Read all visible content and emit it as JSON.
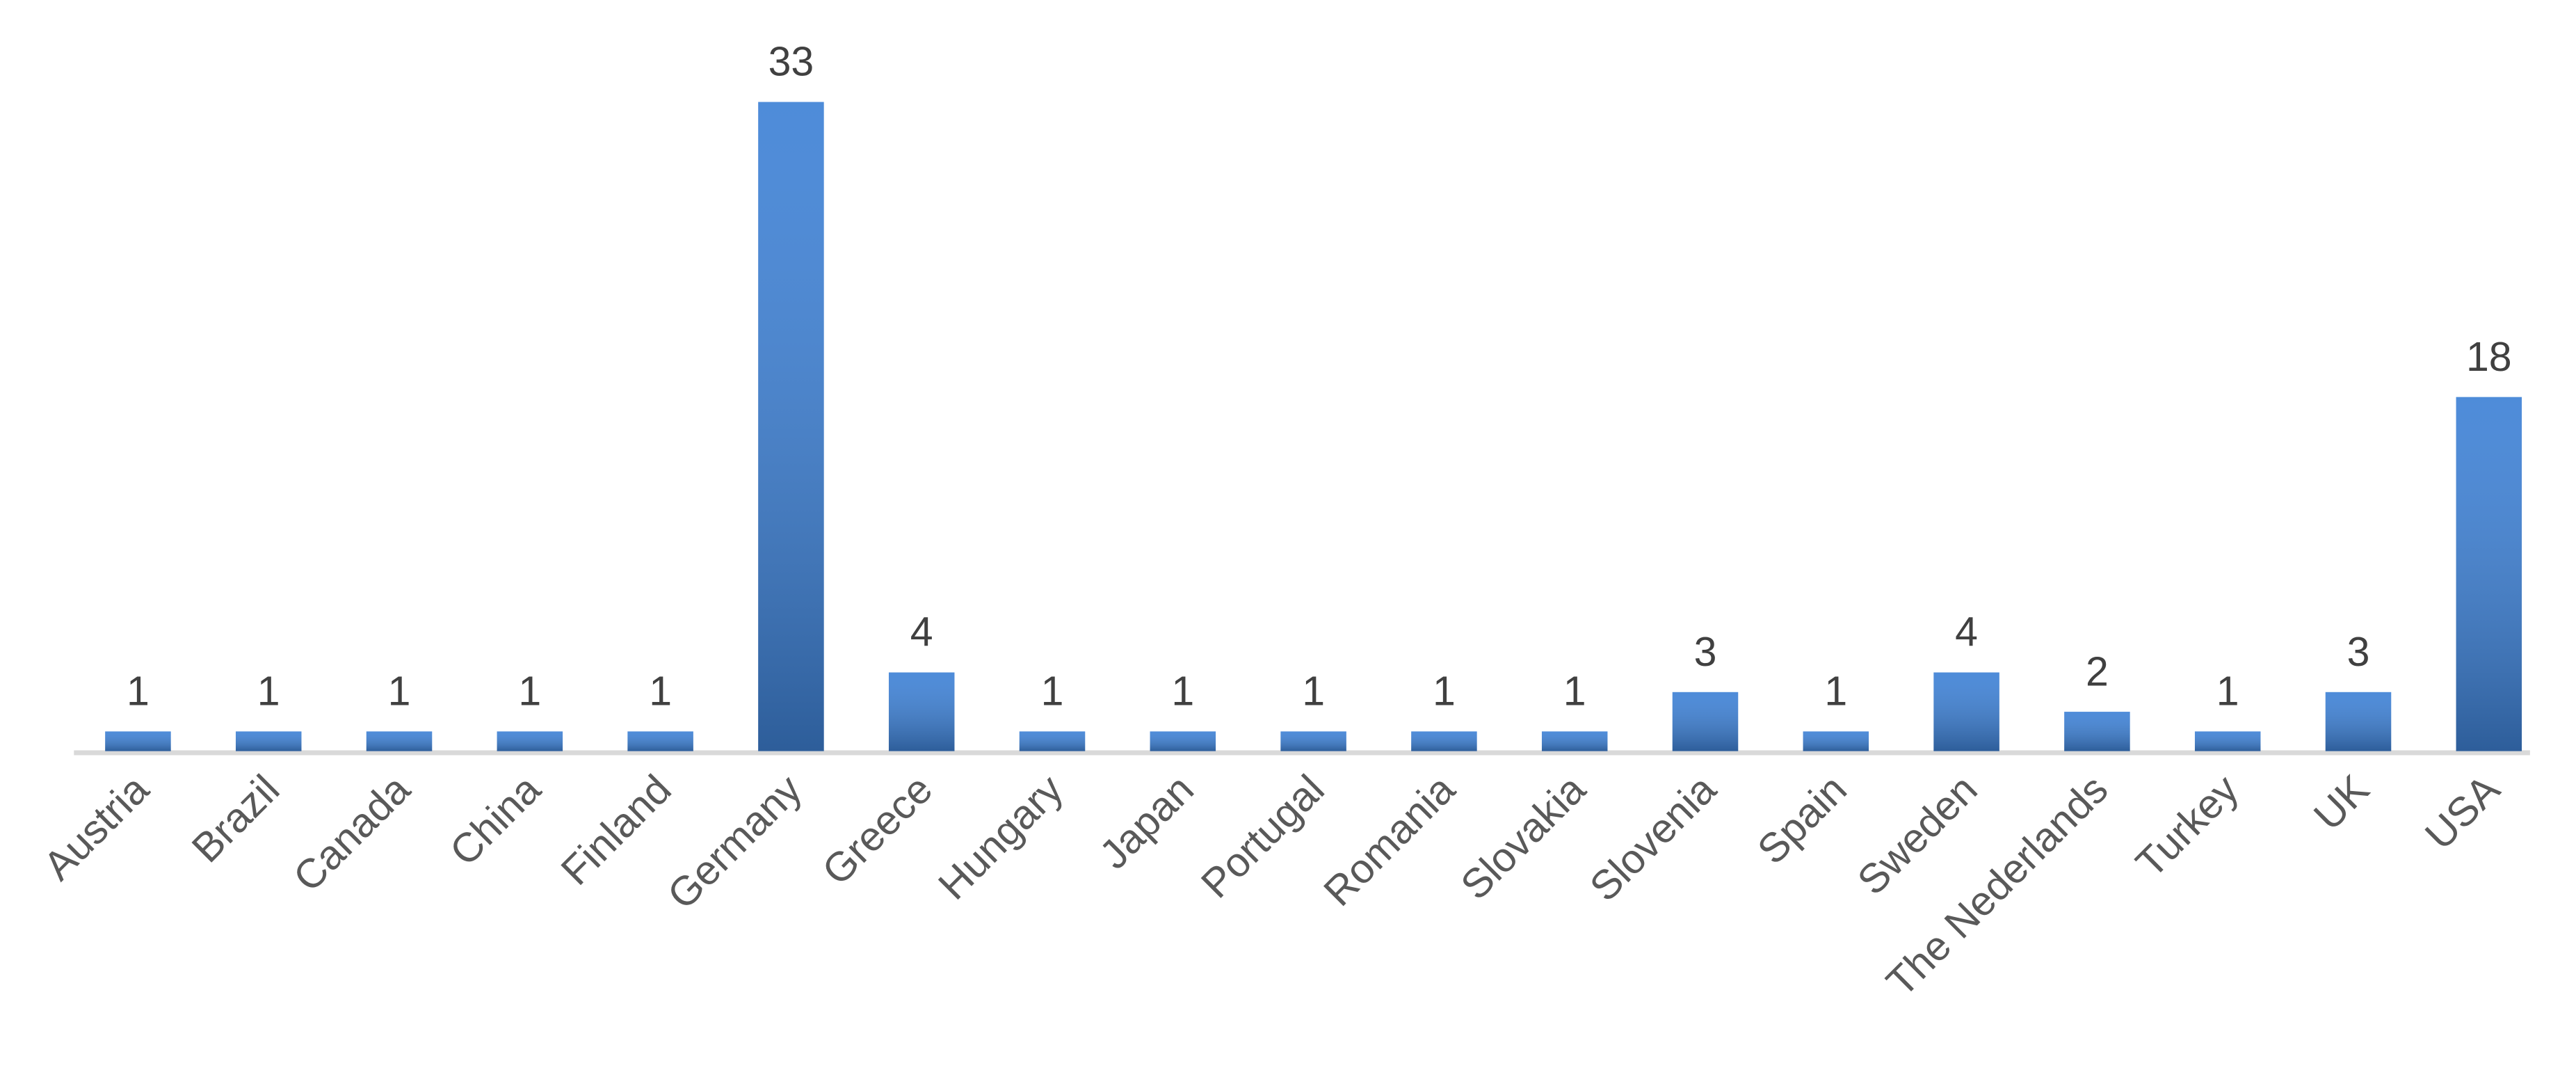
{
  "chart_data": {
    "type": "bar",
    "categories": [
      "Austria",
      "Brazil",
      "Canada",
      "China",
      "Finland",
      "Germany",
      "Greece",
      "Hungary",
      "Japan",
      "Portugal",
      "Romania",
      "Slovakia",
      "Slovenia",
      "Spain",
      "Sweden",
      "The Nederlands",
      "Turkey",
      "UK",
      "USA"
    ],
    "values": [
      1,
      1,
      1,
      1,
      1,
      33,
      4,
      1,
      1,
      1,
      1,
      1,
      3,
      1,
      4,
      2,
      1,
      3,
      18
    ],
    "color": "#3f82d6"
  }
}
